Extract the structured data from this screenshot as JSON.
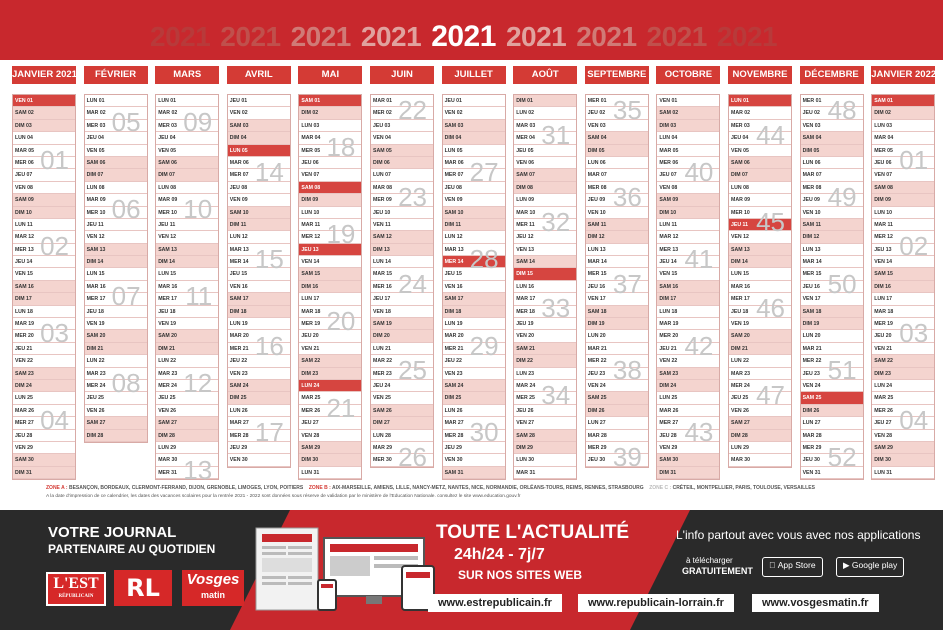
{
  "header": {
    "year_sequence": [
      "2021",
      "2021",
      "2021",
      "2021",
      "2021",
      "2021",
      "2021",
      "2021",
      "2021"
    ]
  },
  "months": [
    {
      "name": "JANVIER 2021",
      "start": 4,
      "len": 31,
      "start_week": 1,
      "weeks": [
        {
          "label": "01",
          "day": 5
        },
        {
          "label": "02",
          "day": 12
        },
        {
          "label": "03",
          "day": 19
        },
        {
          "label": "04",
          "day": 26
        }
      ],
      "holidays": [
        1
      ]
    },
    {
      "name": "FÉVRIER",
      "start": 0,
      "len": 28,
      "weeks": [
        {
          "label": "05",
          "day": 2
        },
        {
          "label": "06",
          "day": 9
        },
        {
          "label": "07",
          "day": 16
        },
        {
          "label": "08",
          "day": 23
        }
      ],
      "holidays": []
    },
    {
      "name": "MARS",
      "start": 0,
      "len": 31,
      "weeks": [
        {
          "label": "09",
          "day": 2
        },
        {
          "label": "10",
          "day": 9
        },
        {
          "label": "11",
          "day": 16
        },
        {
          "label": "12",
          "day": 23
        },
        {
          "label": "13",
          "day": 30
        }
      ],
      "holidays": []
    },
    {
      "name": "AVRIL",
      "start": 3,
      "len": 30,
      "weeks": [
        {
          "label": "14",
          "day": 6
        },
        {
          "label": "15",
          "day": 13
        },
        {
          "label": "16",
          "day": 20
        },
        {
          "label": "17",
          "day": 27
        }
      ],
      "holidays": [
        5
      ]
    },
    {
      "name": "MAI",
      "start": 5,
      "len": 31,
      "weeks": [
        {
          "label": "18",
          "day": 4
        },
        {
          "label": "19",
          "day": 11
        },
        {
          "label": "20",
          "day": 18
        },
        {
          "label": "21",
          "day": 25
        }
      ],
      "holidays": [
        1,
        8,
        13,
        24
      ]
    },
    {
      "name": "JUIN",
      "start": 1,
      "len": 30,
      "weeks": [
        {
          "label": "22",
          "day": 1
        },
        {
          "label": "23",
          "day": 8
        },
        {
          "label": "24",
          "day": 15
        },
        {
          "label": "25",
          "day": 22
        },
        {
          "label": "26",
          "day": 29
        }
      ],
      "holidays": []
    },
    {
      "name": "JUILLET",
      "start": 3,
      "len": 31,
      "weeks": [
        {
          "label": "27",
          "day": 6
        },
        {
          "label": "28",
          "day": 13
        },
        {
          "label": "29",
          "day": 20
        },
        {
          "label": "30",
          "day": 27
        }
      ],
      "holidays": [
        14
      ]
    },
    {
      "name": "AOÛT",
      "start": 6,
      "len": 31,
      "weeks": [
        {
          "label": "31",
          "day": 3
        },
        {
          "label": "32",
          "day": 10
        },
        {
          "label": "33",
          "day": 17
        },
        {
          "label": "34",
          "day": 24
        }
      ],
      "holidays": [
        15
      ]
    },
    {
      "name": "SEPTEMBRE",
      "start": 2,
      "len": 30,
      "weeks": [
        {
          "label": "35",
          "day": 1
        },
        {
          "label": "36",
          "day": 8
        },
        {
          "label": "37",
          "day": 15
        },
        {
          "label": "38",
          "day": 22
        },
        {
          "label": "39",
          "day": 29
        }
      ],
      "holidays": []
    },
    {
      "name": "OCTOBRE",
      "start": 4,
      "len": 31,
      "weeks": [
        {
          "label": "40",
          "day": 6
        },
        {
          "label": "41",
          "day": 13
        },
        {
          "label": "42",
          "day": 20
        },
        {
          "label": "43",
          "day": 27
        }
      ],
      "holidays": []
    },
    {
      "name": "NOVEMBRE",
      "start": 0,
      "len": 30,
      "weeks": [
        {
          "label": "44",
          "day": 3
        },
        {
          "label": "45",
          "day": 10
        },
        {
          "label": "46",
          "day": 17
        },
        {
          "label": "47",
          "day": 24
        }
      ],
      "holidays": [
        1,
        11
      ]
    },
    {
      "name": "DÉCEMBRE",
      "start": 2,
      "len": 31,
      "weeks": [
        {
          "label": "48",
          "day": 1
        },
        {
          "label": "49",
          "day": 8
        },
        {
          "label": "50",
          "day": 15
        },
        {
          "label": "51",
          "day": 22
        },
        {
          "label": "52",
          "day": 29
        }
      ],
      "holidays": [
        25
      ]
    },
    {
      "name": "JANVIER 2022",
      "start": 5,
      "len": 31,
      "weeks": [
        {
          "label": "01",
          "day": 5
        },
        {
          "label": "02",
          "day": 12
        },
        {
          "label": "03",
          "day": 19
        },
        {
          "label": "04",
          "day": 26
        }
      ],
      "holidays": [
        1
      ]
    }
  ],
  "day_abbr": [
    "LUN",
    "MAR",
    "MER",
    "JEU",
    "VEN",
    "SAM",
    "DIM"
  ],
  "zones": {
    "zone_a_label": "ZONE A :",
    "zone_a": "BESANÇON, BORDEAUX, CLERMONT-FERRAND, DIJON, GRENOBLE, LIMOGES, LYON, POITIERS",
    "zone_b_label": "ZONE B :",
    "zone_b": "AIX-MARSEILLE, AMIENS, LILLE, NANCY-METZ, NANTES, NICE, NORMANDIE, ORLÉANS-TOURS, REIMS, RENNES, STRASBOURG",
    "zone_c_label": "ZONE C :",
    "zone_c": "CRÉTEIL, MONTPELLIER, PARIS, TOULOUSE, VERSAILLES",
    "note": "A la date d'impression de ce calendrier, les dates des vacances scolaires pour la rentrée 2021 - 2022 sont données sous réserve de validation par le ministère de l'Education Nationale. consultez le site www.education.gouv.fr"
  },
  "footer": {
    "journal_line1": "VOTRE JOURNAL",
    "journal_line2": "PARTENAIRE AU QUOTIDIEN",
    "logo_est": "L'EST",
    "logo_est_sub": "RÉPUBLICAIN",
    "logo_rl": "RL",
    "logo_vosges": "Vosges",
    "logo_vosges_sub": "matin",
    "actu_title": "TOUTE L'ACTUALITÉ",
    "actu_time": "24h/24 - 7j/7",
    "actu_sub": "SUR NOS SITES WEB",
    "apps_text": "L'info partout avec vous avec nos applications",
    "download_line1": "à télécharger",
    "download_line2": "GRATUITEMENT",
    "appstore": "App Store",
    "googleplay": "Google play",
    "url1": "www.estrepublicain.fr",
    "url2": "www.republicain-lorrain.fr",
    "url3": "www.vosgesmatin.fr"
  }
}
